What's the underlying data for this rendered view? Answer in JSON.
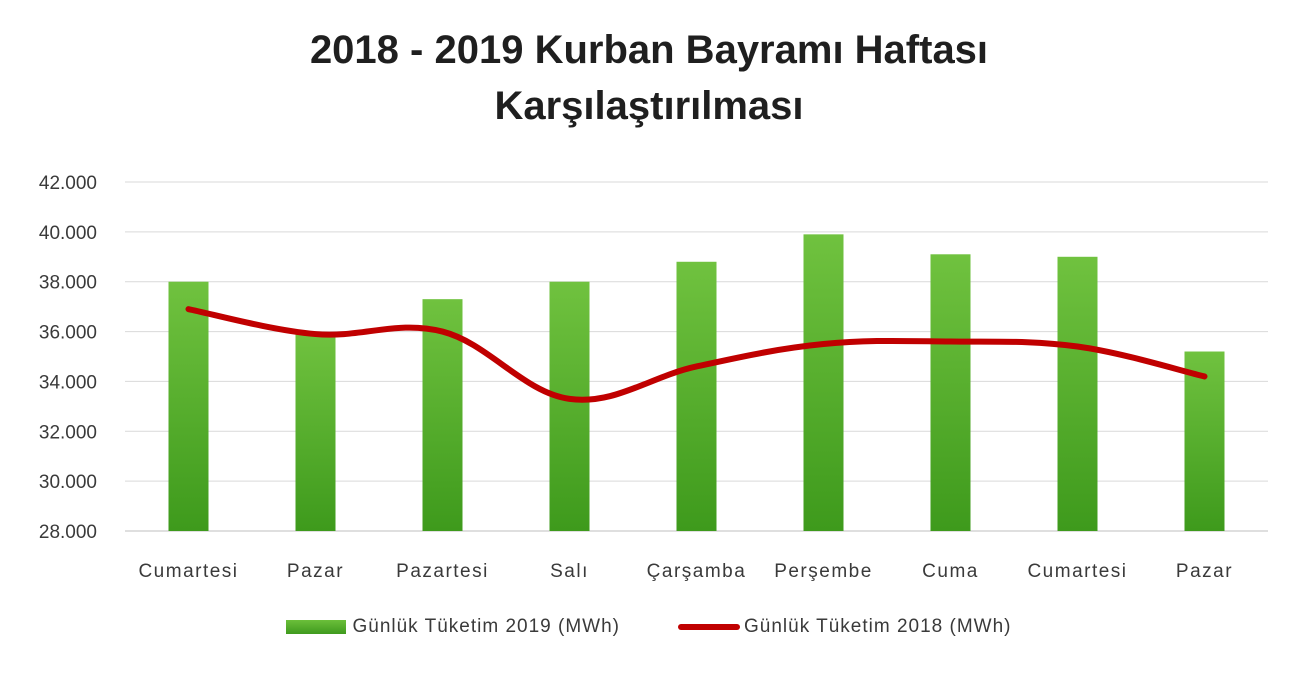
{
  "chart_data": {
    "type": "bar",
    "title": [
      "2018 - 2019 Kurban Bayramı Haftası",
      "Karşılaştırılması"
    ],
    "categories": [
      "Cumartesi",
      "Pazar",
      "Pazartesi",
      "Salı",
      "Çarşamba",
      "Perşembe",
      "Cuma",
      "Cumartesi",
      "Pazar"
    ],
    "ylim": [
      28000,
      42000
    ],
    "yticks": [
      "28.000",
      "30.000",
      "32.000",
      "34.000",
      "36.000",
      "38.000",
      "40.000",
      "42.000"
    ],
    "ytick_values": [
      28000,
      30000,
      32000,
      34000,
      36000,
      38000,
      40000,
      42000
    ],
    "grid": true,
    "legend_position": "bottom",
    "series": [
      {
        "name": "Günlük Tüketim 2019 (MWh)",
        "kind": "bar",
        "color": "#4ea72a",
        "values": [
          38000,
          35900,
          37300,
          38000,
          38800,
          39900,
          39100,
          39000,
          35200
        ]
      },
      {
        "name": "Günlük Tüketim 2018 (MWh)",
        "kind": "line",
        "color": "#c00000",
        "values": [
          36900,
          35900,
          36000,
          33300,
          34600,
          35500,
          35600,
          35400,
          34200
        ]
      }
    ]
  }
}
